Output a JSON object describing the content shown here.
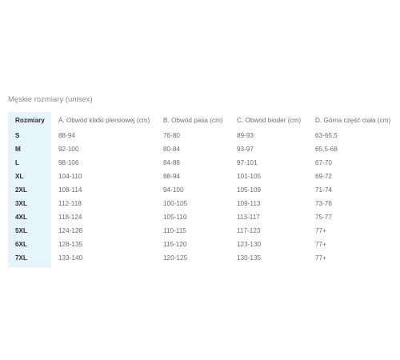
{
  "chart": {
    "title": "Męskie rozmiary (unisex)",
    "headers": [
      "Rozmiary",
      "A. Obwód klatki piersiowej (cm)",
      "B. Obwód pasa (cm)",
      "C. Obwód bioder (cm)",
      "D. Górna część ciała (cm)"
    ],
    "rows": [
      [
        "S",
        "88-94",
        "76-80",
        "89-93",
        "63-65,5"
      ],
      [
        "M",
        "92-100",
        "80-84",
        "93-97",
        "65,5-68"
      ],
      [
        "L",
        "98-106",
        "84-88",
        "97-101",
        "67-70"
      ],
      [
        "XL",
        "104-110",
        "88-94",
        "101-105",
        "69-72"
      ],
      [
        "2XL",
        "108-114",
        "94-100",
        "105-109",
        "71-74"
      ],
      [
        "3XL",
        "112-118",
        "100-105",
        "109-113",
        "73-76"
      ],
      [
        "4XL",
        "118-124",
        "105-110",
        "113-117",
        "75-77"
      ],
      [
        "5XL",
        "124-128",
        "110-115",
        "117-123",
        "77+"
      ],
      [
        "6XL",
        "128-135",
        "115-120",
        "123-130",
        "77+"
      ],
      [
        "7XL",
        "133-140",
        "120-125",
        "130-135",
        "77+"
      ]
    ]
  },
  "colors": {
    "size_column_bg": "#e6f4fb",
    "text": "#6b6b6b",
    "size_text": "#2c2c2c"
  }
}
